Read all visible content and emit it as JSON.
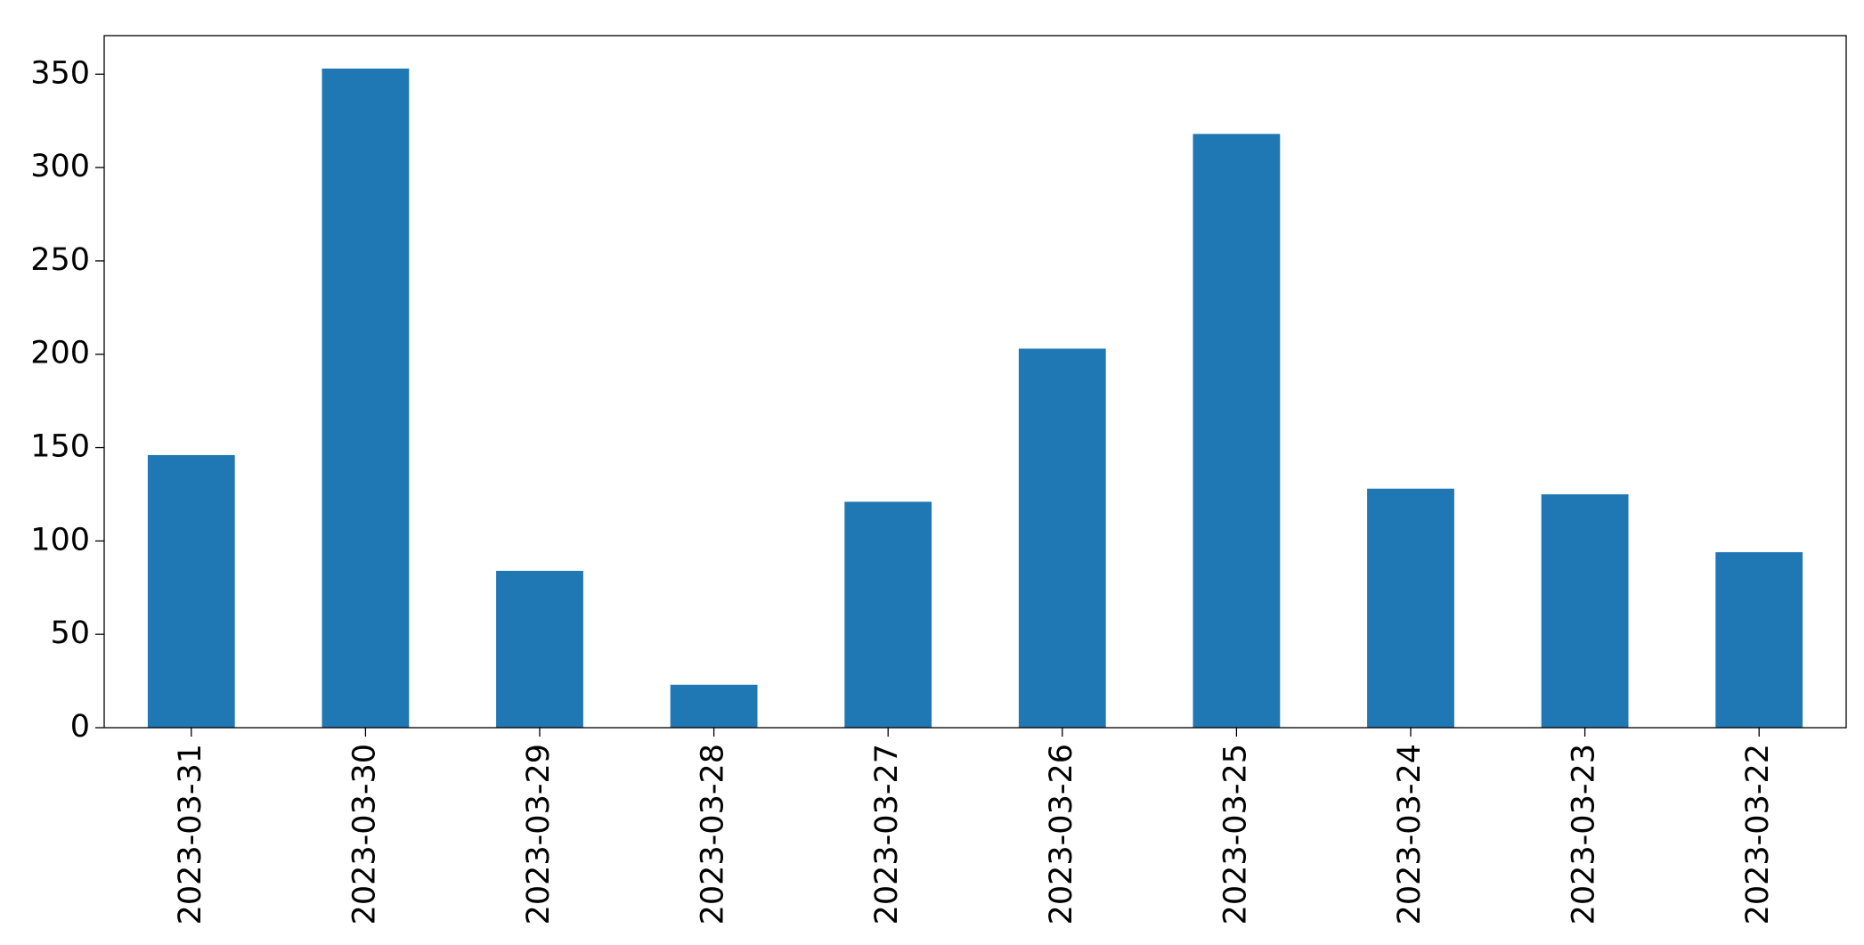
{
  "chart_data": {
    "type": "bar",
    "categories": [
      "2023-03-31",
      "2023-03-30",
      "2023-03-29",
      "2023-03-28",
      "2023-03-27",
      "2023-03-26",
      "2023-03-25",
      "2023-03-24",
      "2023-03-23",
      "2023-03-22"
    ],
    "values": [
      146,
      353,
      84,
      23,
      121,
      203,
      318,
      128,
      125,
      94
    ],
    "color": "#1f77b4",
    "ylim": [
      0,
      370.65
    ],
    "yticks": [
      0,
      50,
      100,
      150,
      200,
      250,
      300,
      350
    ],
    "grid": false
  }
}
